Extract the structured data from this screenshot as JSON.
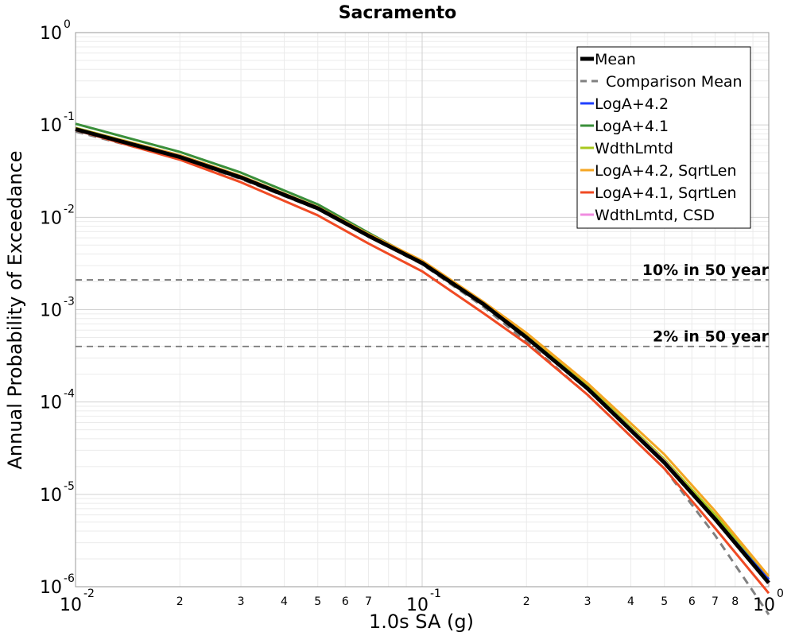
{
  "chart_data": {
    "type": "line",
    "title": "Sacramento",
    "xlabel": "1.0s SA (g)",
    "ylabel": "Annual Probability of Exceedance",
    "xscale": "log",
    "yscale": "log",
    "xlim": [
      0.01,
      1
    ],
    "ylim": [
      1e-06,
      1
    ],
    "grid": true,
    "legend_position": "top-right",
    "x_major_ticks": [
      {
        "base": "10",
        "exp": "-2",
        "value": 0.01
      },
      {
        "base": "10",
        "exp": "-1",
        "value": 0.1
      },
      {
        "base": "10",
        "exp": "0",
        "value": 1
      }
    ],
    "x_minor_ticks": [
      {
        "label": "2",
        "value": 0.02
      },
      {
        "label": "3",
        "value": 0.03
      },
      {
        "label": "4",
        "value": 0.04
      },
      {
        "label": "5",
        "value": 0.05
      },
      {
        "label": "6",
        "value": 0.06
      },
      {
        "label": "7",
        "value": 0.07
      },
      {
        "label": "2",
        "value": 0.2
      },
      {
        "label": "3",
        "value": 0.3
      },
      {
        "label": "4",
        "value": 0.4
      },
      {
        "label": "5",
        "value": 0.5
      },
      {
        "label": "6",
        "value": 0.6
      },
      {
        "label": "7",
        "value": 0.7
      },
      {
        "label": "8",
        "value": 0.8
      }
    ],
    "y_major_ticks": [
      {
        "base": "10",
        "exp": "0",
        "value": 1
      },
      {
        "base": "10",
        "exp": "-1",
        "value": 0.1
      },
      {
        "base": "10",
        "exp": "-2",
        "value": 0.01
      },
      {
        "base": "10",
        "exp": "-3",
        "value": 0.001
      },
      {
        "base": "10",
        "exp": "-4",
        "value": 0.0001
      },
      {
        "base": "10",
        "exp": "-5",
        "value": 1e-05
      },
      {
        "base": "10",
        "exp": "-6",
        "value": 1e-06
      }
    ],
    "x": [
      0.01,
      0.02,
      0.03,
      0.05,
      0.07,
      0.1,
      0.15,
      0.2,
      0.3,
      0.5,
      0.7,
      1.0
    ],
    "series": [
      {
        "name": "Mean",
        "color": "#000000",
        "dash": "solid",
        "values": [
          0.09,
          0.045,
          0.027,
          0.0125,
          0.0063,
          0.0032,
          0.00115,
          0.0005,
          0.00014,
          2.2e-05,
          5.4e-06,
          1.1e-06
        ]
      },
      {
        "name": "Comparison Mean",
        "color": "#808080",
        "dash": "dashed",
        "values": [
          0.085,
          0.043,
          0.026,
          0.0122,
          0.0062,
          0.0031,
          0.00108,
          0.00045,
          0.00012,
          1.9e-05,
          3.6e-06,
          5e-07
        ]
      },
      {
        "name": "LogA+4.2",
        "color": "#1f3fff",
        "dash": "solid",
        "values": [
          0.092,
          0.046,
          0.0275,
          0.0127,
          0.0064,
          0.0032,
          0.00116,
          0.00051,
          0.000145,
          2.3e-05,
          5.7e-06,
          1.2e-06
        ]
      },
      {
        "name": "LogA+4.1",
        "color": "#3a8f3a",
        "dash": "solid",
        "values": [
          0.103,
          0.051,
          0.0305,
          0.0138,
          0.0068,
          0.0033,
          0.0012,
          0.00051,
          0.000145,
          2.3e-05,
          5.6e-06,
          1.2e-06
        ]
      },
      {
        "name": "WdthLmtd",
        "color": "#a8c81e",
        "dash": "solid",
        "values": [
          0.093,
          0.047,
          0.028,
          0.0128,
          0.0065,
          0.0033,
          0.0012,
          0.00053,
          0.00015,
          2.4e-05,
          6e-06,
          1.3e-06
        ]
      },
      {
        "name": "LogA+4.2, SqrtLen",
        "color": "#f5a623",
        "dash": "solid",
        "values": [
          0.092,
          0.047,
          0.028,
          0.0129,
          0.0066,
          0.0034,
          0.00122,
          0.00056,
          0.00016,
          2.7e-05,
          6.6e-06,
          1.3e-06
        ]
      },
      {
        "name": "LogA+4.1, SqrtLen",
        "color": "#f04a23",
        "dash": "solid",
        "values": [
          0.088,
          0.042,
          0.024,
          0.0105,
          0.0052,
          0.0026,
          0.00092,
          0.00043,
          0.00012,
          1.9e-05,
          4.3e-06,
          8.5e-07
        ]
      },
      {
        "name": "WdthLmtd, CSD",
        "color": "#f08ce0",
        "dash": "solid",
        "values": [
          0.091,
          0.046,
          0.0275,
          0.0126,
          0.0064,
          0.0032,
          0.00116,
          0.00051,
          0.000143,
          2.3e-05,
          5.5e-06,
          1.1e-06
        ]
      }
    ],
    "reference_lines": [
      {
        "label": "10% in 50 year",
        "value": 0.0021
      },
      {
        "label": "2% in 50 year",
        "value": 0.0004
      }
    ]
  }
}
